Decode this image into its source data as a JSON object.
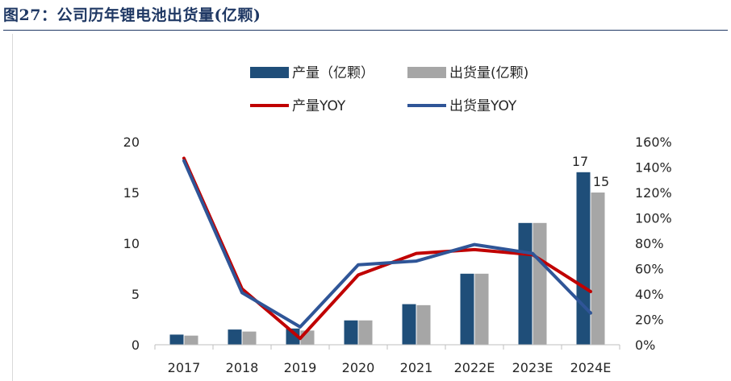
{
  "figure": {
    "title": "图27：公司历年锂电池出货量(亿颗)"
  },
  "colors": {
    "production_bar": "#1f4e79",
    "shipment_bar": "#a6a6a6",
    "production_yoy": "#c00000",
    "shipment_yoy": "#2f5597",
    "title": "#1f3864"
  },
  "chart_data": {
    "type": "bar",
    "categories": [
      "2017",
      "2018",
      "2019",
      "2020",
      "2021",
      "2022E",
      "2023E",
      "2024E"
    ],
    "series": [
      {
        "name": "产量（亿颗）",
        "type": "bar",
        "axis": "left",
        "values": [
          1.0,
          1.5,
          1.6,
          2.4,
          4.0,
          7.0,
          12.0,
          17.0
        ]
      },
      {
        "name": "出货量(亿颗)",
        "type": "bar",
        "axis": "left",
        "values": [
          0.9,
          1.3,
          1.4,
          2.4,
          3.9,
          7.0,
          12.0,
          15.0
        ]
      },
      {
        "name": "产量YOY",
        "type": "line",
        "axis": "right",
        "values": [
          147,
          44,
          5,
          55,
          72,
          75,
          71,
          42
        ]
      },
      {
        "name": "出货量YOY",
        "type": "line",
        "axis": "right",
        "values": [
          145,
          41,
          14,
          63,
          66,
          79,
          72,
          25
        ]
      }
    ],
    "y_left": {
      "min": 0,
      "max": 20,
      "ticks": [
        0,
        5,
        10,
        15,
        20
      ]
    },
    "y_right": {
      "min": 0,
      "max": 160,
      "step": 20,
      "unit": "%",
      "tick_labels": [
        "0%",
        "20%",
        "40%",
        "60%",
        "80%",
        "100%",
        "120%",
        "140%",
        "160%"
      ]
    },
    "data_labels": [
      {
        "series": "产量（亿颗）",
        "category": "2024E",
        "text": "17"
      },
      {
        "series": "出货量(亿颗)",
        "category": "2024E",
        "text": "15"
      }
    ],
    "legend": {
      "placement": "top-center"
    },
    "grid": false
  }
}
